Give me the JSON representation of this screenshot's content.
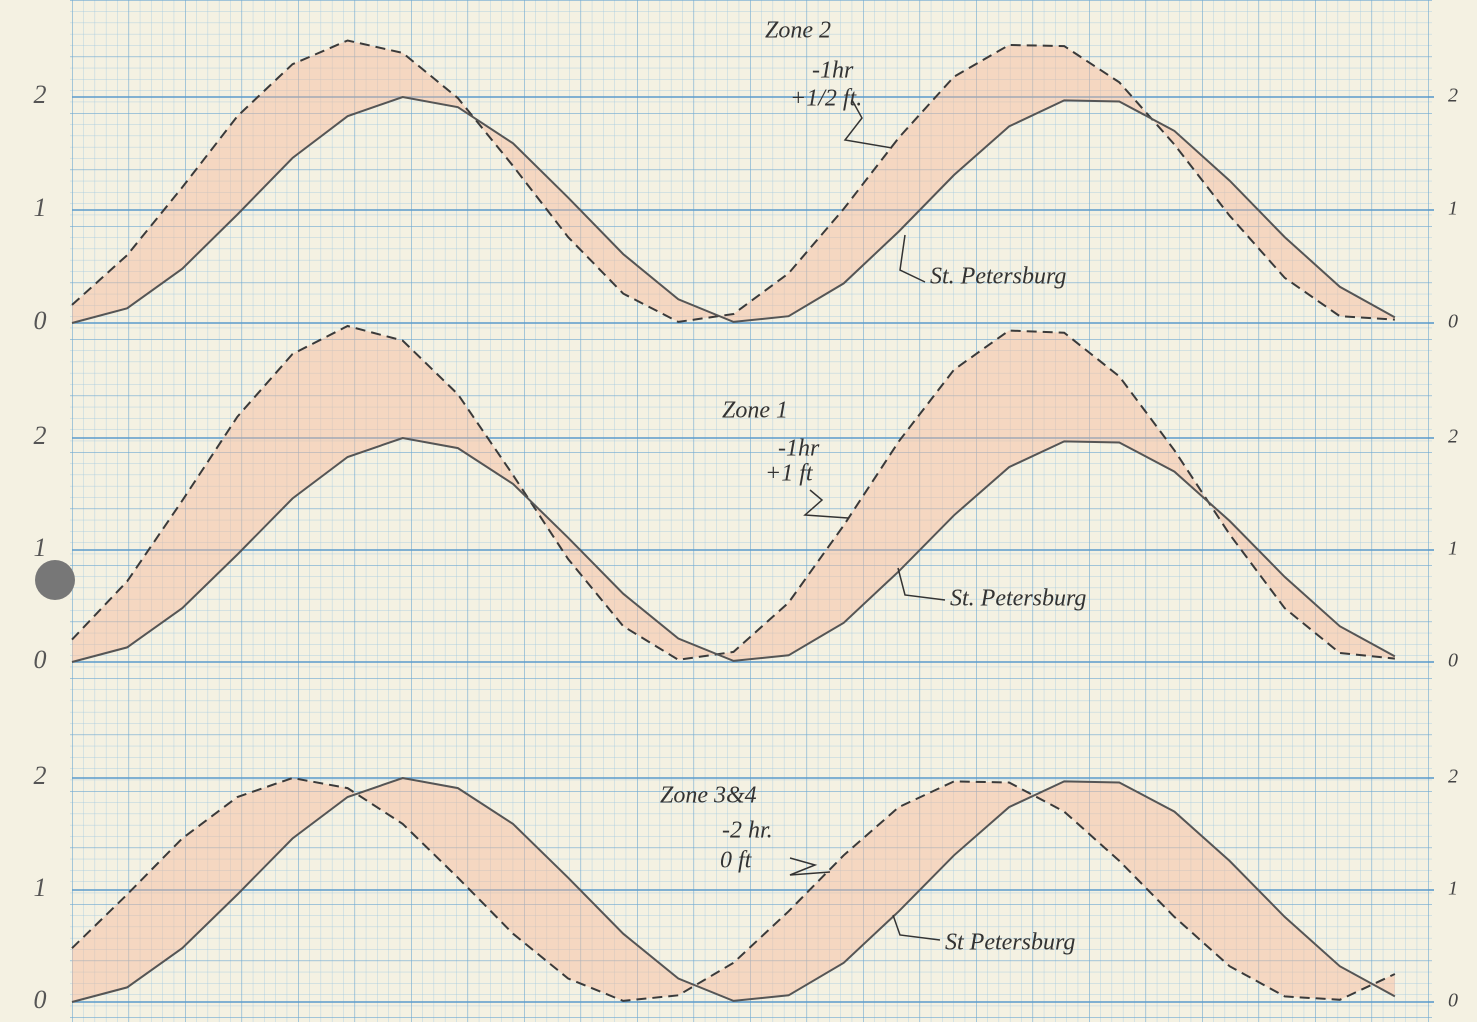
{
  "chart_data": [
    {
      "type": "line",
      "annotations": [
        "-1hr",
        "+1/2 ft."
      ],
      "x": [
        0,
        1,
        2,
        3,
        4,
        5,
        6,
        7,
        8,
        9,
        10,
        11,
        12,
        13,
        14,
        15,
        16,
        17,
        18,
        19,
        20,
        21,
        22,
        23,
        24
      ],
      "xlim": [
        0,
        24.6
      ],
      "ylim": [
        0,
        2.7
      ],
      "yticks": [
        0,
        1,
        2
      ],
      "y2lim": [
        0,
        2.7
      ],
      "y2ticks": [
        0,
        1,
        2
      ],
      "series": [
        {
          "name": "Zone 2",
          "color": "#3a3a3a",
          "linestyle": "dashed",
          "values": [
            0.16,
            0.6,
            1.2,
            1.83,
            2.29,
            2.5,
            2.39,
            1.99,
            1.39,
            0.76,
            0.26,
            0.01,
            0.08,
            0.44,
            1.01,
            1.64,
            2.18,
            2.46,
            2.45,
            2.13,
            1.58,
            0.95,
            0.4,
            0.06,
            0.03
          ]
        },
        {
          "name": "St. Petersburg",
          "color": "#555555",
          "linestyle": "solid",
          "values": [
            0,
            0.13,
            0.48,
            0.96,
            1.46,
            1.83,
            2.0,
            1.91,
            1.59,
            1.11,
            0.61,
            0.21,
            0.01,
            0.06,
            0.35,
            0.81,
            1.31,
            1.74,
            1.97,
            1.96,
            1.7,
            1.26,
            0.76,
            0.32,
            0.05
          ]
        }
      ]
    },
    {
      "type": "line",
      "annotations": [
        "-1hr",
        "+1 ft"
      ],
      "x": [
        0,
        1,
        2,
        3,
        4,
        5,
        6,
        7,
        8,
        9,
        10,
        11,
        12,
        13,
        14,
        15,
        16,
        17,
        18,
        19,
        20,
        21,
        22,
        23,
        24
      ],
      "xlim": [
        0,
        24.6
      ],
      "ylim": [
        0,
        3.1
      ],
      "yticks": [
        0,
        1,
        2
      ],
      "y2lim": [
        0,
        3.1
      ],
      "y2ticks": [
        0,
        1,
        2
      ],
      "series": [
        {
          "name": "Zone 1",
          "color": "#3a3a3a",
          "linestyle": "dashed",
          "values": [
            0.2,
            0.72,
            1.44,
            2.19,
            2.75,
            3.0,
            2.87,
            2.39,
            1.67,
            0.92,
            0.32,
            0.02,
            0.09,
            0.53,
            1.22,
            1.97,
            2.61,
            2.96,
            2.94,
            2.55,
            1.89,
            1.14,
            0.48,
            0.08,
            0.03
          ]
        },
        {
          "name": "St. Petersburg",
          "color": "#555555",
          "linestyle": "solid",
          "values": [
            0,
            0.13,
            0.48,
            0.96,
            1.46,
            1.83,
            2.0,
            1.91,
            1.59,
            1.11,
            0.61,
            0.21,
            0.01,
            0.06,
            0.35,
            0.81,
            1.31,
            1.74,
            1.97,
            1.96,
            1.7,
            1.26,
            0.76,
            0.32,
            0.05
          ]
        }
      ]
    },
    {
      "type": "line",
      "annotations": [
        "-2 hr.",
        "0 ft"
      ],
      "x": [
        0,
        1,
        2,
        3,
        4,
        5,
        6,
        7,
        8,
        9,
        10,
        11,
        12,
        13,
        14,
        15,
        16,
        17,
        18,
        19,
        20,
        21,
        22,
        23,
        24
      ],
      "xlim": [
        0,
        24.6
      ],
      "ylim": [
        0,
        2.4
      ],
      "yticks": [
        0,
        1,
        2
      ],
      "y2lim": [
        0,
        2.4
      ],
      "y2ticks": [
        0,
        1,
        2
      ],
      "series": [
        {
          "name": "Zone 3&4",
          "color": "#3a3a3a",
          "linestyle": "dashed",
          "values": [
            0.48,
            0.96,
            1.46,
            1.83,
            2.0,
            1.91,
            1.59,
            1.11,
            0.61,
            0.21,
            0.01,
            0.06,
            0.35,
            0.81,
            1.31,
            1.74,
            1.97,
            1.96,
            1.7,
            1.26,
            0.76,
            0.32,
            0.05,
            0.02,
            0.25
          ]
        },
        {
          "name": "St Petersburg",
          "color": "#555555",
          "linestyle": "solid",
          "values": [
            0,
            0.13,
            0.48,
            0.96,
            1.46,
            1.83,
            2.0,
            1.91,
            1.59,
            1.11,
            0.61,
            0.21,
            0.01,
            0.06,
            0.35,
            0.81,
            1.31,
            1.74,
            1.97,
            1.96,
            1.7,
            1.26,
            0.76,
            0.32,
            0.05
          ]
        }
      ]
    }
  ]
}
